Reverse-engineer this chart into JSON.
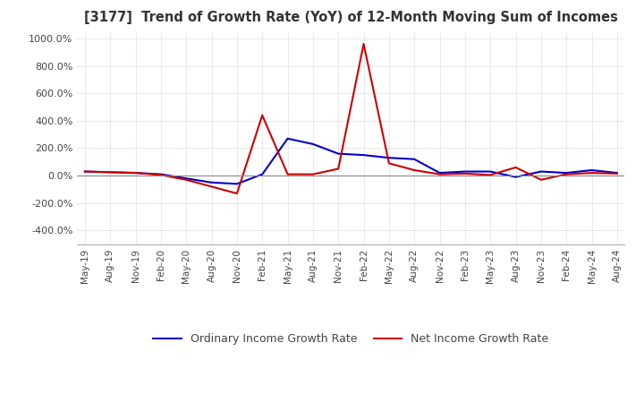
{
  "title": "[3177]  Trend of Growth Rate (YoY) of 12-Month Moving Sum of Incomes",
  "ylim": [
    -500,
    1050
  ],
  "yticks": [
    -400,
    -200,
    0,
    200,
    400,
    600,
    800,
    1000
  ],
  "background_color": "#ffffff",
  "plot_bg_color": "#ffffff",
  "grid_color": "#bbbbbb",
  "legend_labels": [
    "Ordinary Income Growth Rate",
    "Net Income Growth Rate"
  ],
  "line_colors": [
    "#0000cc",
    "#cc0000"
  ],
  "x_labels": [
    "May-19",
    "Aug-19",
    "Nov-19",
    "Feb-20",
    "May-20",
    "Aug-20",
    "Nov-20",
    "Feb-21",
    "May-21",
    "Aug-21",
    "Nov-21",
    "Feb-22",
    "May-22",
    "Aug-22",
    "Nov-22",
    "Feb-23",
    "May-23",
    "Aug-23",
    "Nov-23",
    "Feb-24",
    "May-24",
    "Aug-24"
  ],
  "ordinary_income": [
    30,
    25,
    20,
    10,
    -20,
    -50,
    -60,
    10,
    270,
    230,
    160,
    150,
    130,
    120,
    20,
    30,
    30,
    -10,
    30,
    20,
    40,
    20
  ],
  "net_income": [
    30,
    25,
    20,
    5,
    -30,
    -80,
    -130,
    440,
    10,
    10,
    50,
    960,
    90,
    40,
    10,
    15,
    5,
    60,
    -30,
    10,
    20,
    15
  ]
}
